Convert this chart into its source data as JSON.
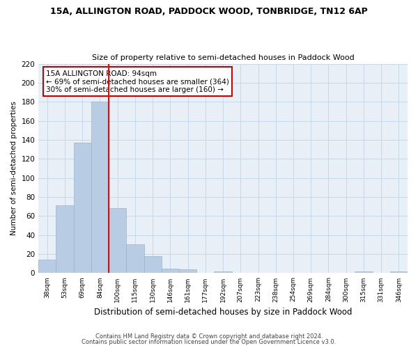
{
  "title1": "15A, ALLINGTON ROAD, PADDOCK WOOD, TONBRIDGE, TN12 6AP",
  "title2": "Size of property relative to semi-detached houses in Paddock Wood",
  "xlabel": "Distribution of semi-detached houses by size in Paddock Wood",
  "ylabel": "Number of semi-detached properties",
  "categories": [
    "38sqm",
    "53sqm",
    "69sqm",
    "84sqm",
    "100sqm",
    "115sqm",
    "130sqm",
    "146sqm",
    "161sqm",
    "177sqm",
    "192sqm",
    "207sqm",
    "223sqm",
    "238sqm",
    "254sqm",
    "269sqm",
    "284sqm",
    "300sqm",
    "315sqm",
    "331sqm",
    "346sqm"
  ],
  "values": [
    14,
    71,
    137,
    180,
    68,
    30,
    18,
    5,
    4,
    0,
    2,
    0,
    0,
    0,
    0,
    0,
    0,
    0,
    2,
    0,
    2
  ],
  "bar_color": "#b8cce4",
  "bar_edge_color": "#9ab3d0",
  "grid_color": "#c8d8e8",
  "annotation_title": "15A ALLINGTON ROAD: 94sqm",
  "annotation_line1": "← 69% of semi-detached houses are smaller (364)",
  "annotation_line2": "30% of semi-detached houses are larger (160) →",
  "annotation_box_color": "#ffffff",
  "annotation_box_edge": "#cc0000",
  "red_line_x": 4.0,
  "ylim": [
    0,
    220
  ],
  "yticks": [
    0,
    20,
    40,
    60,
    80,
    100,
    120,
    140,
    160,
    180,
    200,
    220
  ],
  "footer1": "Contains HM Land Registry data © Crown copyright and database right 2024.",
  "footer2": "Contains public sector information licensed under the Open Government Licence v3.0.",
  "fig_bg_color": "#ffffff",
  "ax_bg_color": "#e8eff7"
}
